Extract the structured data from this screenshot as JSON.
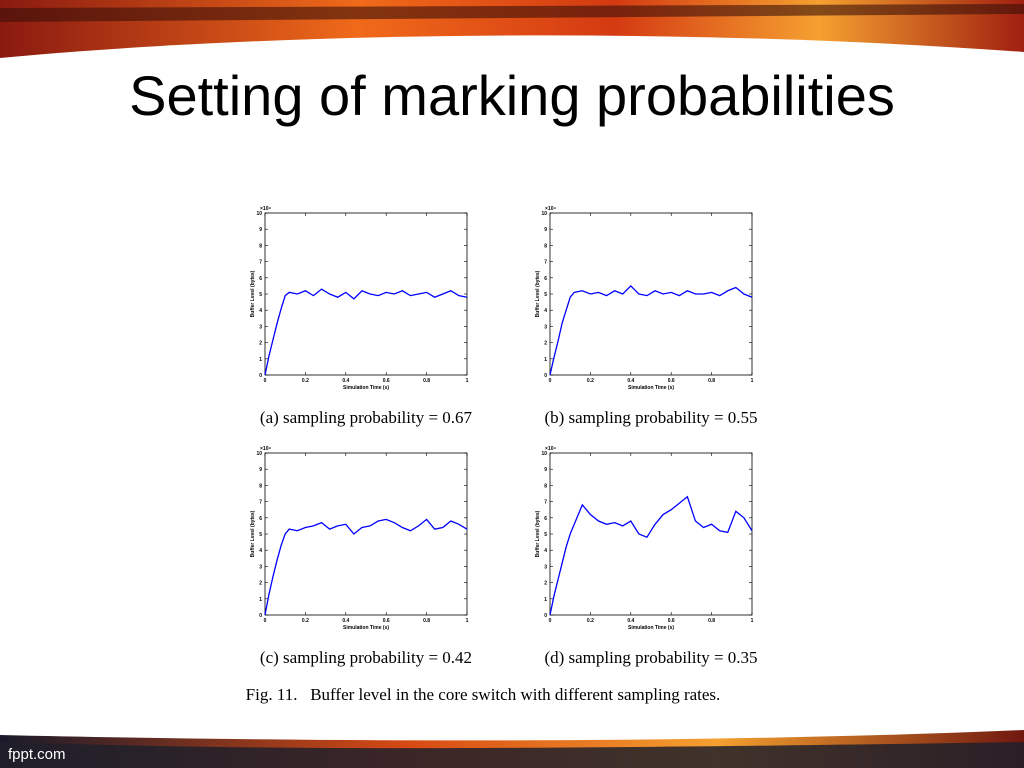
{
  "title": "Setting of marking probabilities",
  "figure_caption": "Fig. 11.   Buffer level in the core switch with different sampling rates.",
  "footer": "fppt.com",
  "chart_data": [
    {
      "type": "line",
      "caption": "(a) sampling probability = 0.67",
      "xlabel": "Simulation Time (s)",
      "ylabel": "Buffer Level (bytes)",
      "y_multiplier": "×10⁴",
      "color": "#0000ff",
      "xlim": [
        0,
        1
      ],
      "xticks": [
        0,
        0.2,
        0.4,
        0.6,
        0.8,
        1
      ],
      "ylim": [
        0,
        10
      ],
      "yticks": [
        0,
        1,
        2,
        3,
        4,
        5,
        6,
        7,
        8,
        9,
        10
      ],
      "x": [
        0,
        0.02,
        0.04,
        0.06,
        0.08,
        0.1,
        0.12,
        0.16,
        0.2,
        0.24,
        0.28,
        0.32,
        0.36,
        0.4,
        0.44,
        0.48,
        0.52,
        0.56,
        0.6,
        0.64,
        0.68,
        0.72,
        0.76,
        0.8,
        0.84,
        0.88,
        0.92,
        0.96,
        1
      ],
      "values": [
        0,
        1.2,
        2.2,
        3.2,
        4.1,
        4.9,
        5.1,
        5.0,
        5.2,
        4.9,
        5.3,
        5.0,
        4.8,
        5.1,
        4.7,
        5.2,
        5.0,
        4.9,
        5.1,
        5.0,
        5.2,
        4.9,
        5.0,
        5.1,
        4.8,
        5.0,
        5.2,
        4.9,
        4.8
      ]
    },
    {
      "type": "line",
      "caption": "(b) sampling probability = 0.55",
      "xlabel": "Simulation Time (s)",
      "ylabel": "Buffer Level (bytes)",
      "y_multiplier": "×10⁴",
      "color": "#0000ff",
      "xlim": [
        0,
        1
      ],
      "xticks": [
        0,
        0.2,
        0.4,
        0.6,
        0.8,
        1
      ],
      "ylim": [
        0,
        10
      ],
      "yticks": [
        0,
        1,
        2,
        3,
        4,
        5,
        6,
        7,
        8,
        9,
        10
      ],
      "x": [
        0,
        0.02,
        0.04,
        0.06,
        0.08,
        0.1,
        0.12,
        0.16,
        0.2,
        0.24,
        0.28,
        0.32,
        0.36,
        0.4,
        0.44,
        0.48,
        0.52,
        0.56,
        0.6,
        0.64,
        0.68,
        0.72,
        0.76,
        0.8,
        0.84,
        0.88,
        0.92,
        0.96,
        1
      ],
      "values": [
        0,
        1.1,
        2.1,
        3.2,
        4.0,
        4.8,
        5.1,
        5.2,
        5.0,
        5.1,
        4.9,
        5.2,
        5.0,
        5.5,
        5.0,
        4.9,
        5.2,
        5.0,
        5.1,
        4.9,
        5.2,
        5.0,
        5.0,
        5.1,
        4.9,
        5.2,
        5.4,
        5.0,
        4.8
      ]
    },
    {
      "type": "line",
      "caption": "(c) sampling probability = 0.42",
      "xlabel": "Simulation Time (s)",
      "ylabel": "Buffer Level (bytes)",
      "y_multiplier": "×10⁴",
      "color": "#0000ff",
      "xlim": [
        0,
        1
      ],
      "xticks": [
        0,
        0.2,
        0.4,
        0.6,
        0.8,
        1
      ],
      "ylim": [
        0,
        10
      ],
      "yticks": [
        0,
        1,
        2,
        3,
        4,
        5,
        6,
        7,
        8,
        9,
        10
      ],
      "x": [
        0,
        0.02,
        0.04,
        0.06,
        0.08,
        0.1,
        0.12,
        0.16,
        0.2,
        0.24,
        0.28,
        0.32,
        0.36,
        0.4,
        0.44,
        0.48,
        0.52,
        0.56,
        0.6,
        0.64,
        0.68,
        0.72,
        0.76,
        0.8,
        0.84,
        0.88,
        0.92,
        0.96,
        1
      ],
      "values": [
        0,
        1.3,
        2.4,
        3.4,
        4.3,
        5.0,
        5.3,
        5.2,
        5.4,
        5.5,
        5.7,
        5.3,
        5.5,
        5.6,
        5.0,
        5.4,
        5.5,
        5.8,
        5.9,
        5.7,
        5.4,
        5.2,
        5.5,
        5.9,
        5.3,
        5.4,
        5.8,
        5.6,
        5.3
      ]
    },
    {
      "type": "line",
      "caption": "(d) sampling probability = 0.35",
      "xlabel": "Simulation Time (s)",
      "ylabel": "Buffer Level (bytes)",
      "y_multiplier": "×10⁴",
      "color": "#0000ff",
      "xlim": [
        0,
        1
      ],
      "xticks": [
        0,
        0.2,
        0.4,
        0.6,
        0.8,
        1
      ],
      "ylim": [
        0,
        10
      ],
      "yticks": [
        0,
        1,
        2,
        3,
        4,
        5,
        6,
        7,
        8,
        9,
        10
      ],
      "x": [
        0,
        0.02,
        0.04,
        0.06,
        0.08,
        0.1,
        0.12,
        0.16,
        0.2,
        0.24,
        0.28,
        0.32,
        0.36,
        0.4,
        0.44,
        0.48,
        0.52,
        0.56,
        0.6,
        0.64,
        0.68,
        0.72,
        0.76,
        0.8,
        0.84,
        0.88,
        0.92,
        0.96,
        1
      ],
      "values": [
        0,
        1.2,
        2.2,
        3.2,
        4.2,
        5.0,
        5.6,
        6.8,
        6.2,
        5.8,
        5.6,
        5.7,
        5.5,
        5.8,
        5.0,
        4.8,
        5.6,
        6.2,
        6.5,
        6.9,
        7.3,
        5.8,
        5.4,
        5.6,
        5.2,
        5.1,
        6.4,
        6.0,
        5.2
      ]
    }
  ]
}
